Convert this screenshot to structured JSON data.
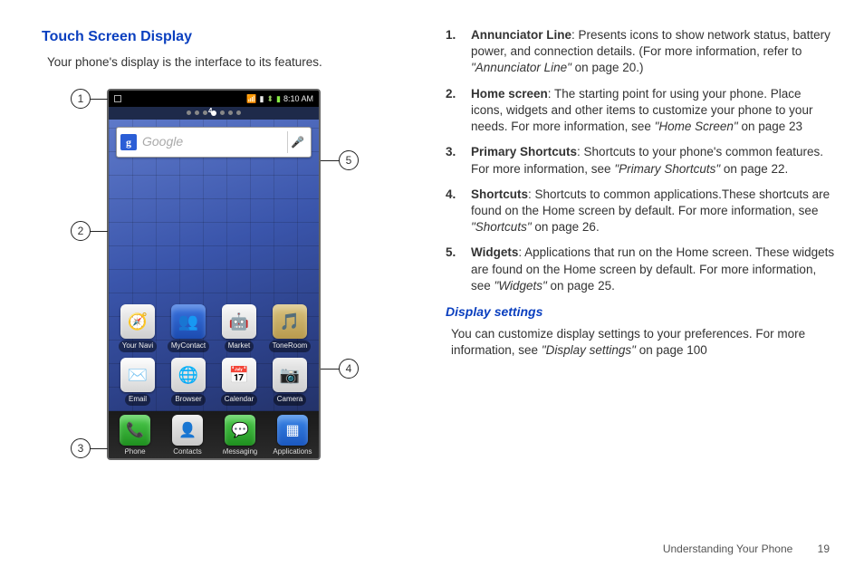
{
  "sectionTitle": "Touch Screen Display",
  "intro": "Your phone's display is the interface to its features.",
  "subTitle": "Display settings",
  "subText": [
    "You can customize display settings to your preferences. For more information, see ",
    "\"Display settings\"",
    " on page 100"
  ],
  "callouts": [
    "1",
    "2",
    "3",
    "4",
    "5"
  ],
  "statusTime": "8:10 AM",
  "searchPlaceholder": "Google",
  "indicatorDot": "4",
  "rowA": [
    {
      "label": "Your Navi",
      "glyph": "🧭",
      "bg": "linear-gradient(#f5f5f5,#cfcfcf)",
      "color": "#333"
    },
    {
      "label": "MyContact",
      "glyph": "👥",
      "bg": "linear-gradient(#3a74e0,#1c4bb0)"
    },
    {
      "label": "Market",
      "glyph": "🤖",
      "bg": "linear-gradient(#f8f8f8,#d8d8d8)",
      "color": "#4a4"
    },
    {
      "label": "ToneRoom",
      "glyph": "🎵",
      "bg": "linear-gradient(#d9c27e,#b89a4e)"
    }
  ],
  "rowB": [
    {
      "label": "Email",
      "glyph": "✉️",
      "bg": "linear-gradient(#fdfdfd,#d6d6d6)",
      "color": "#4a4"
    },
    {
      "label": "Browser",
      "glyph": "🌐",
      "bg": "linear-gradient(#f0f0f0,#d0d0d0)",
      "color": "#2b5ed6"
    },
    {
      "label": "Calendar",
      "glyph": "📅",
      "bg": "linear-gradient(#fafafa,#dcdcdc)",
      "color": "#333"
    },
    {
      "label": "Camera",
      "glyph": "📷",
      "bg": "linear-gradient(#eaeaea,#cfcfcf)",
      "color": "#333"
    }
  ],
  "dock": [
    {
      "label": "Phone",
      "glyph": "📞",
      "bg": "linear-gradient(#4fcf4f,#1f8f1f)"
    },
    {
      "label": "Contacts",
      "glyph": "👤",
      "bg": "linear-gradient(#ececec,#c8c8c8)",
      "color": "#444"
    },
    {
      "label": "Messaging",
      "glyph": "💬",
      "bg": "linear-gradient(#4fcf4f,#1f8f1f)"
    },
    {
      "label": "Applications",
      "glyph": "▦",
      "bg": "linear-gradient(#3a86e8,#1b58c0)"
    }
  ],
  "defs": [
    {
      "term": "Annunciator Line",
      "body": ": Presents icons to show network status, battery power, and connection details. (For more information, refer to ",
      "ref": "\"Annunciator Line\"",
      "tail": " on page 20.)"
    },
    {
      "term": "Home screen",
      "body": ": The starting point for using your phone. Place icons, widgets and other items to customize your phone to your needs. For more information, see ",
      "ref": "\"Home Screen\"",
      "tail": " on page 23"
    },
    {
      "term": "Primary Shortcuts",
      "body": ": Shortcuts to your phone's common features. For more information, see ",
      "ref": "\"Primary Shortcuts\"",
      "tail": " on page 22."
    },
    {
      "term": "Shortcuts",
      "body": ": Shortcuts to common applications.These shortcuts are found on the Home screen by default. For more information, see ",
      "ref": "\"Shortcuts\"",
      "tail": " on page 26."
    },
    {
      "term": "Widgets",
      "body": ": Applications that run on the Home screen. These widgets are found on the Home screen by default. For more information, see ",
      "ref": "\"Widgets\"",
      "tail": " on page 25."
    }
  ],
  "footerSection": "Understanding Your Phone",
  "footerPage": "19",
  "icons": {
    "rowA": [
      {
        "bg": "linear-gradient(#f5f5f5,#cfcfcf)",
        "color": "#333"
      },
      {
        "bg": "linear-gradient(#3a74e0,#1c4bb0)",
        "color": "#fff"
      },
      {
        "bg": "linear-gradient(#f8f8f8,#d8d8d8)",
        "color": "#4a4"
      },
      {
        "bg": "linear-gradient(#d9c27e,#b89a4e)",
        "color": "#fff"
      }
    ],
    "rowB": [
      {
        "bg": "linear-gradient(#fdfdfd,#d6d6d6)",
        "color": "#4a4"
      },
      {
        "bg": "linear-gradient(#f0f0f0,#d0d0d0)",
        "color": "#2b5ed6"
      },
      {
        "bg": "linear-gradient(#fafafa,#dcdcdc)",
        "color": "#333"
      },
      {
        "bg": "linear-gradient(#eaeaea,#cfcfcf)",
        "color": "#333"
      }
    ],
    "dock": [
      {
        "bg": "linear-gradient(#4fcf4f,#1f8f1f)",
        "color": "#fff"
      },
      {
        "bg": "linear-gradient(#ececec,#c8c8c8)",
        "color": "#444"
      },
      {
        "bg": "linear-gradient(#4fcf4f,#1f8f1f)",
        "color": "#fff"
      },
      {
        "bg": "linear-gradient(#3a86e8,#1b58c0)",
        "color": "#fff"
      }
    ]
  }
}
